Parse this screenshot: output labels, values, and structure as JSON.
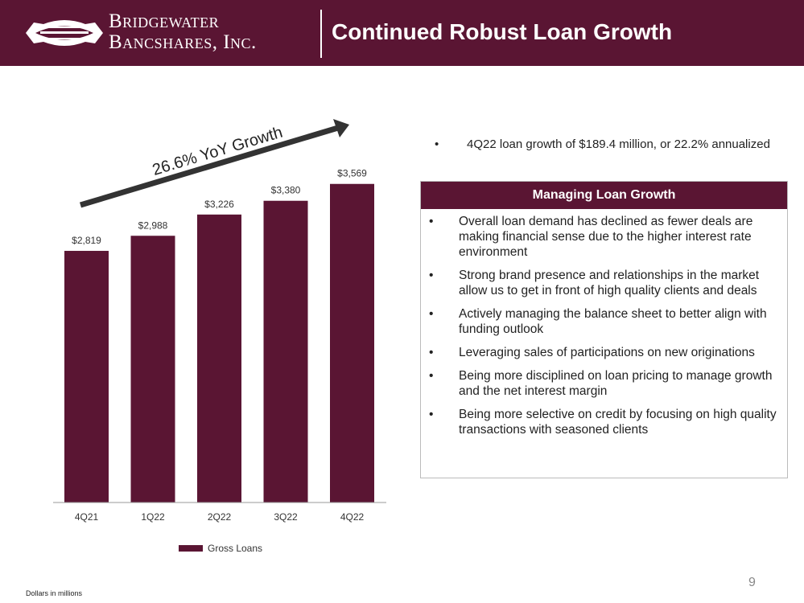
{
  "header": {
    "logo_line1": "Bridgewater",
    "logo_line2": "Bancshares, Inc.",
    "title": "Continued Robust Loan Growth"
  },
  "chart_data": {
    "type": "bar",
    "categories": [
      "4Q21",
      "1Q22",
      "2Q22",
      "3Q22",
      "4Q22"
    ],
    "series": [
      {
        "name": "Gross Loans",
        "values": [
          2819,
          2988,
          3226,
          3380,
          3569
        ]
      }
    ],
    "value_labels": [
      "$2,819",
      "$2,988",
      "$3,226",
      "$3,380",
      "$3,569"
    ],
    "ylim": [
      0,
      3900
    ],
    "annotation": "26.6% YoY Growth",
    "legend": "bottom",
    "bar_color": "#5a1533"
  },
  "summary": {
    "bullet": "4Q22 loan growth of $189.4 million, or 22.2% annualized"
  },
  "panel": {
    "title": "Managing Loan Growth",
    "items": [
      "Overall loan demand has declined as fewer deals are making financial sense due to the higher interest rate environment",
      "Strong brand presence and relationships in the market allow us to get in front of high quality clients and deals",
      "Actively managing the balance sheet to better align with funding outlook",
      "Leveraging sales of participations on new originations",
      "Being more disciplined on loan pricing to manage growth and the net interest margin",
      "Being more selective on credit by focusing on high quality transactions with seasoned clients"
    ]
  },
  "footer": {
    "note": "Dollars in millions",
    "page": "9"
  },
  "colors": {
    "brand": "#5a1533",
    "arrow": "#333333"
  }
}
